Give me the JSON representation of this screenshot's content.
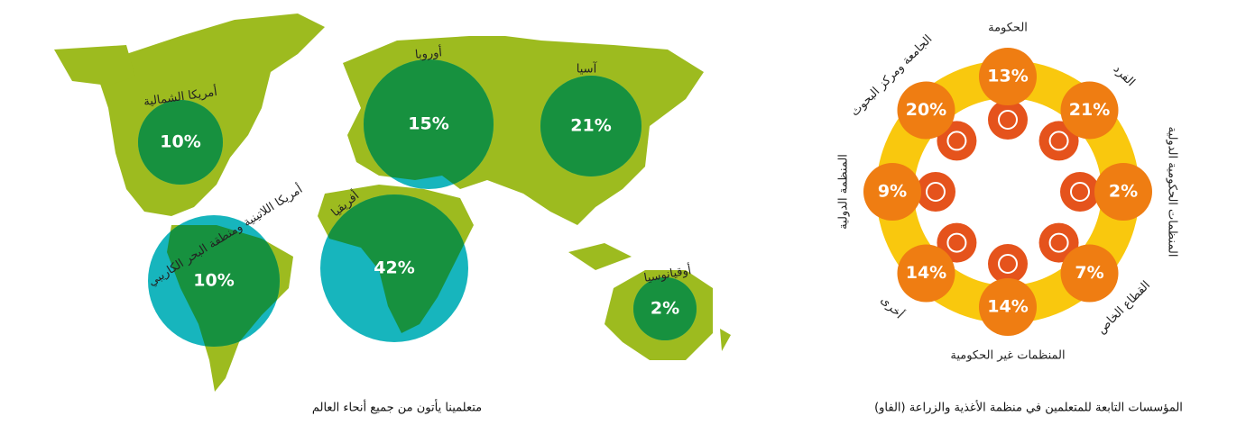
{
  "map": {
    "caption": "متعلمينا يأتون من جميع أنحاء العالم",
    "regions": [
      {
        "name": "أمريكا الشمالية",
        "share": "10%"
      },
      {
        "name": "أمريكا اللاتينية ومنطقة البحر الكاريبي",
        "share": "10%"
      },
      {
        "name": "أوروبا",
        "share": "15%"
      },
      {
        "name": "أفريقيا",
        "share": "42%"
      },
      {
        "name": "آسيا",
        "share": "21%"
      },
      {
        "name": "أوقيانوسيا",
        "share": "2%"
      }
    ]
  },
  "ring": {
    "caption": "المؤسسات التابعة للمتعلمين في منظمة الأغذية والزراعة (الفاو)",
    "items": [
      {
        "name": "الحكومة",
        "share": "13%"
      },
      {
        "name": "الفرد",
        "share": "21%"
      },
      {
        "name": "المنظمات الحكومية الدولية",
        "share": "2%"
      },
      {
        "name": "القطاع الخاص",
        "share": "7%"
      },
      {
        "name": "المنظمات غير الحكومية",
        "share": "14%"
      },
      {
        "name": "أخرى",
        "share": "14%"
      },
      {
        "name": "المنظمة الدولية",
        "share": "9%"
      },
      {
        "name": "الجامعة ومركز البحوث",
        "share": "20%"
      }
    ]
  }
}
